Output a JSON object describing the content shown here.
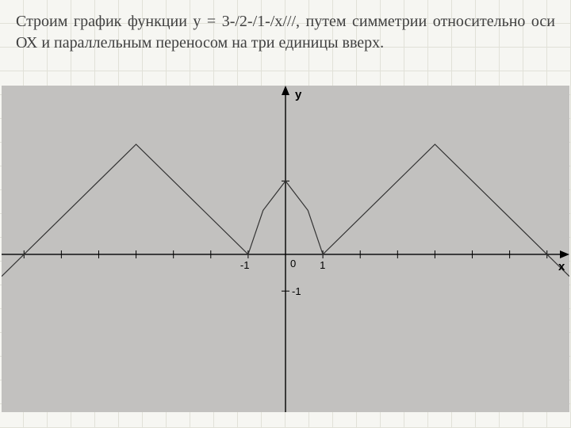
{
  "description_text": "Строим график функции у = 3-/2-/1-/х///, путем симметрии относительно оси ОХ и параллельным переносом на три единицы вверх.",
  "description_color": "#404040",
  "description_fontsize": 20,
  "page_bg": "#f6f6f2",
  "notebook_grid_color": "#e1e1d8",
  "chart": {
    "type": "line",
    "background_color": "#c2c1bf",
    "axis_color": "#000000",
    "curve_color": "#333333",
    "curve_width": 1.2,
    "tick_len": 5,
    "tick_width": 1,
    "font_family": "Arial, sans-serif",
    "font_size": 13,
    "aspect_w": 716,
    "aspect_h": 412,
    "x_axis": {
      "range": [
        -7.6,
        7.6
      ],
      "tick_step": 1,
      "labeled_ticks": [
        -1,
        1
      ],
      "label": "x",
      "origin_label": "0"
    },
    "y_axis": {
      "range": [
        -4.3,
        4.6
      ],
      "label": "y",
      "labeled_ticks": [
        -1
      ],
      "tick_at_y": 2
    },
    "curve_xy": [
      [
        -7.6,
        -0.6
      ],
      [
        -7,
        0
      ],
      [
        -4,
        3
      ],
      [
        -1,
        0
      ],
      [
        -0.6,
        1.2
      ],
      [
        0,
        2
      ],
      [
        0.6,
        1.2
      ],
      [
        1,
        0
      ],
      [
        4,
        3
      ],
      [
        7,
        0
      ],
      [
        7.6,
        -0.6
      ]
    ]
  }
}
